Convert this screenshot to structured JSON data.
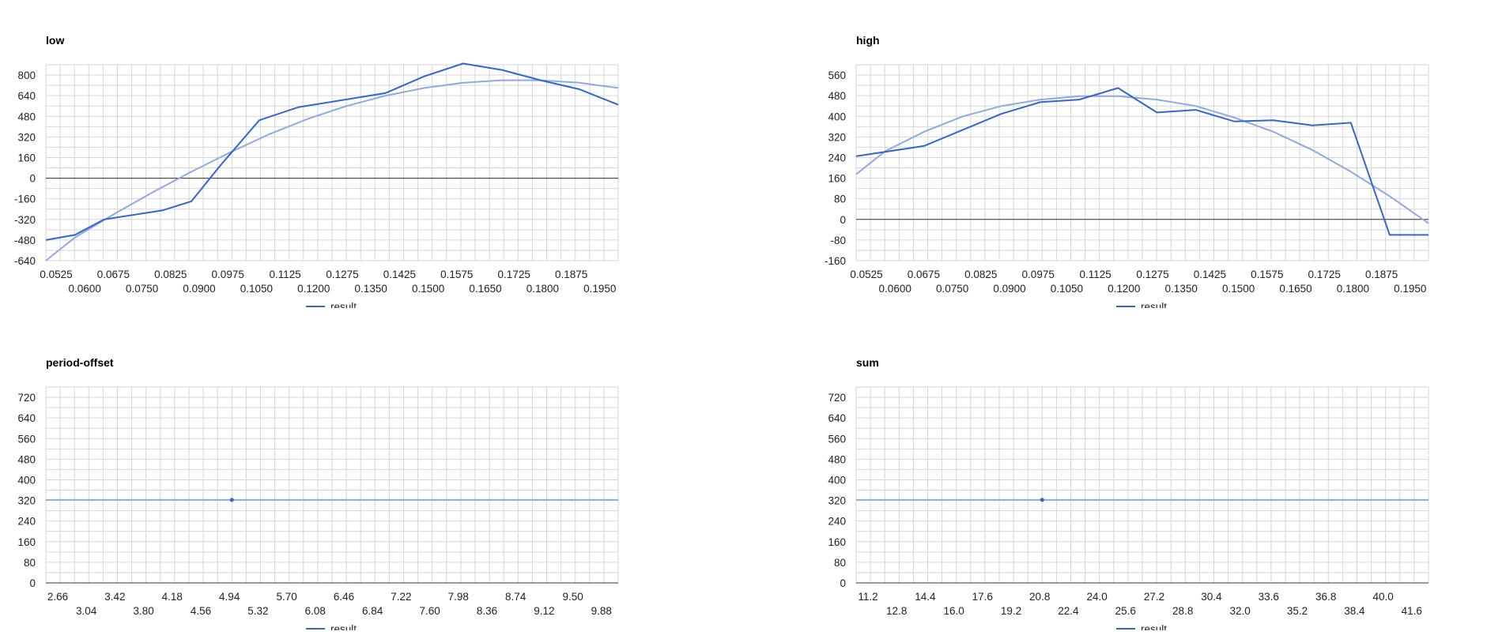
{
  "colors": {
    "series": "#3366cc",
    "trend": "#8eaae0",
    "grid": "#d6d6d6",
    "zero_line": "#333333"
  },
  "chart_data": [
    {
      "type": "line",
      "title": "low",
      "legend": "result",
      "legend_position": "bottom",
      "grid": true,
      "trendline": "polynomial",
      "xlim": [
        0.0525,
        0.2
      ],
      "ylim": [
        -640,
        880
      ],
      "x_ticks": [
        "0.0525",
        "0.0600",
        "0.0675",
        "0.0750",
        "0.0825",
        "0.0900",
        "0.0975",
        "0.1050",
        "0.1125",
        "0.1200",
        "0.1275",
        "0.1350",
        "0.1425",
        "0.1500",
        "0.1575",
        "0.1650",
        "0.1725",
        "0.1800",
        "0.1875",
        "0.1950"
      ],
      "y_ticks": [
        "-640",
        "-480",
        "-320",
        "-160",
        "0",
        "160",
        "320",
        "480",
        "640",
        "800"
      ],
      "series": [
        {
          "name": "result",
          "x": [
            0.0525,
            0.06,
            0.0675,
            0.0825,
            0.09,
            0.0975,
            0.1075,
            0.1175,
            0.14,
            0.15,
            0.16,
            0.17,
            0.18,
            0.19,
            0.2
          ],
          "y": [
            -480,
            -440,
            -320,
            -250,
            -180,
            100,
            450,
            550,
            660,
            790,
            890,
            840,
            760,
            690,
            570
          ]
        }
      ],
      "trend": {
        "x": [
          0.0525,
          0.06,
          0.07,
          0.08,
          0.09,
          0.1,
          0.11,
          0.12,
          0.13,
          0.14,
          0.15,
          0.16,
          0.17,
          0.18,
          0.19,
          0.2
        ],
        "y": [
          -640,
          -460,
          -280,
          -110,
          50,
          200,
          340,
          460,
          560,
          640,
          700,
          740,
          760,
          760,
          740,
          700
        ]
      }
    },
    {
      "type": "line",
      "title": "high",
      "legend": "result",
      "legend_position": "bottom",
      "grid": true,
      "trendline": "polynomial",
      "xlim": [
        0.0525,
        0.2
      ],
      "ylim": [
        -160,
        600
      ],
      "x_ticks": [
        "0.0525",
        "0.0600",
        "0.0675",
        "0.0750",
        "0.0825",
        "0.0900",
        "0.0975",
        "0.1050",
        "0.1125",
        "0.1200",
        "0.1275",
        "0.1350",
        "0.1425",
        "0.1500",
        "0.1575",
        "0.1650",
        "0.1725",
        "0.1800",
        "0.1875",
        "0.1950"
      ],
      "y_ticks": [
        "-160",
        "-80",
        "0",
        "80",
        "160",
        "240",
        "320",
        "400",
        "480",
        "560"
      ],
      "series": [
        {
          "name": "result",
          "x": [
            0.0525,
            0.07,
            0.09,
            0.1,
            0.11,
            0.12,
            0.13,
            0.14,
            0.15,
            0.16,
            0.17,
            0.18,
            0.19,
            0.2
          ],
          "y": [
            245,
            285,
            410,
            455,
            465,
            510,
            415,
            425,
            380,
            385,
            365,
            375,
            -60,
            -60
          ]
        }
      ],
      "trend": {
        "x": [
          0.0525,
          0.06,
          0.07,
          0.08,
          0.09,
          0.1,
          0.11,
          0.12,
          0.13,
          0.14,
          0.15,
          0.16,
          0.17,
          0.18,
          0.19,
          0.2
        ],
        "y": [
          175,
          265,
          340,
          400,
          440,
          465,
          478,
          478,
          465,
          440,
          395,
          340,
          270,
          185,
          90,
          -15
        ]
      }
    },
    {
      "type": "line",
      "title": "period-offset",
      "legend": "result",
      "legend_position": "bottom",
      "grid": true,
      "trendline": "polynomial",
      "xlim": [
        2.47,
        10.07
      ],
      "ylim": [
        0,
        760
      ],
      "x_ticks": [
        "2.66",
        "3.04",
        "3.42",
        "3.80",
        "4.18",
        "4.56",
        "4.94",
        "5.32",
        "5.70",
        "6.08",
        "6.46",
        "6.84",
        "7.22",
        "7.60",
        "7.98",
        "8.36",
        "8.74",
        "9.12",
        "9.50",
        "9.88"
      ],
      "y_ticks": [
        "0",
        "80",
        "160",
        "240",
        "320",
        "400",
        "480",
        "560",
        "640",
        "720"
      ],
      "series": [
        {
          "name": "result",
          "x": [
            4.94
          ],
          "y": [
            322
          ]
        }
      ],
      "trend": {
        "x": [
          2.47,
          10.07
        ],
        "y": [
          322,
          322
        ]
      }
    },
    {
      "type": "line",
      "title": "sum",
      "legend": "result",
      "legend_position": "bottom",
      "grid": true,
      "trendline": "polynomial",
      "xlim": [
        10.4,
        42.4
      ],
      "ylim": [
        0,
        760
      ],
      "x_ticks": [
        "11.2",
        "12.8",
        "14.4",
        "16.0",
        "17.6",
        "19.2",
        "20.8",
        "22.4",
        "24.0",
        "25.6",
        "27.2",
        "28.8",
        "30.4",
        "32.0",
        "33.6",
        "35.2",
        "36.8",
        "38.4",
        "40.0",
        "41.6"
      ],
      "y_ticks": [
        "0",
        "80",
        "160",
        "240",
        "320",
        "400",
        "480",
        "560",
        "640",
        "720"
      ],
      "series": [
        {
          "name": "result",
          "x": [
            20.8
          ],
          "y": [
            322
          ]
        }
      ],
      "trend": {
        "x": [
          10.4,
          42.4
        ],
        "y": [
          322,
          322
        ]
      }
    }
  ]
}
